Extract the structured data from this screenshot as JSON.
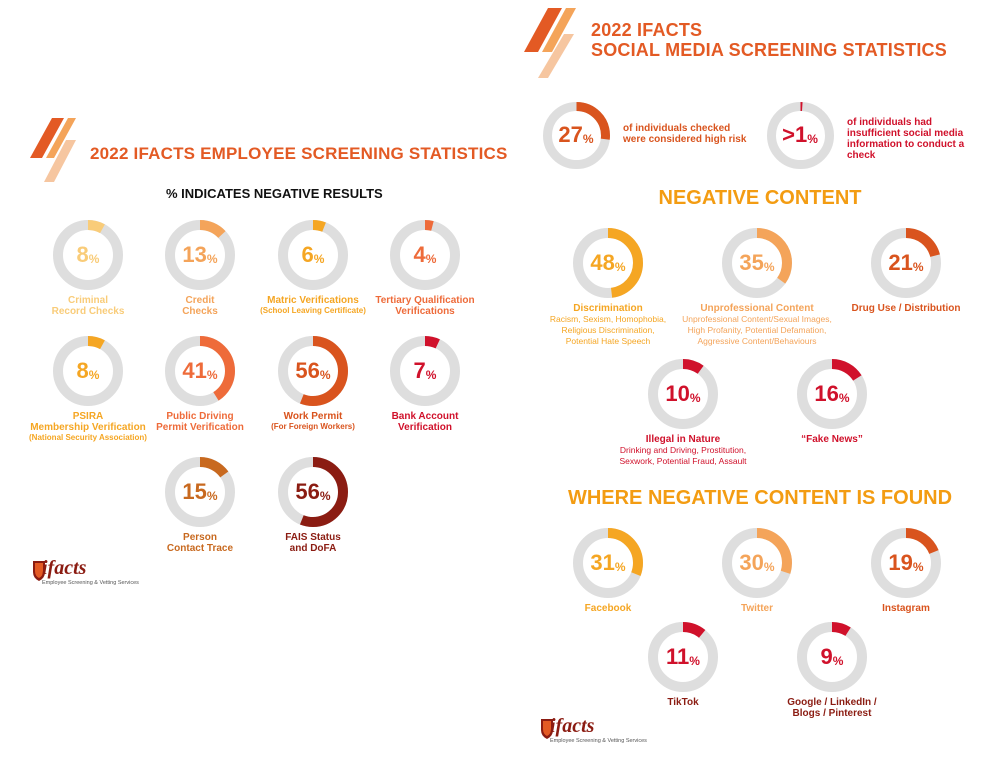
{
  "left": {
    "title": "2022 IFACTS EMPLOYEE SCREENING STATISTICS",
    "subtitle": "% INDICATES NEGATIVE RESULTS",
    "logo": {
      "text": "ifacts",
      "tagline": "Employee Screening & Vetting Services"
    }
  },
  "right": {
    "title_line1": "2022 IFACTS",
    "title_line2": "SOCIAL MEDIA SCREENING STATISTICS",
    "section_negative": "NEGATIVE CONTENT",
    "section_where": "WHERE NEGATIVE CONTENT IS FOUND",
    "logo": {
      "text": "ifacts",
      "tagline": "Employee Screening & Vetting Services"
    }
  },
  "colors": {
    "track": "#dedede",
    "pale": "#f9cc79",
    "light_orange": "#f4a45a",
    "amber": "#f5a623",
    "orange": "#ee6b3a",
    "dark_orange": "#d9541e",
    "brown": "#c8691f",
    "red": "#d0112b",
    "maroon": "#8b1c12",
    "heading": "#e35a24"
  },
  "chart_data": [
    {
      "type": "donut",
      "title": "2022 IFACTS EMPLOYEE SCREENING STATISTICS",
      "unit": "%",
      "items": [
        {
          "id": "e1",
          "value": 8,
          "display": "8",
          "label": "Criminal Record Checks",
          "label_lines": [
            "Criminal",
            "Record Checks"
          ],
          "sub": "",
          "color": "pale"
        },
        {
          "id": "e2",
          "value": 13,
          "display": "13",
          "label": "Credit Checks",
          "label_lines": [
            "Credit",
            "Checks"
          ],
          "sub": "",
          "color": "light_orange"
        },
        {
          "id": "e3",
          "value": 6,
          "display": "6",
          "label": "Matric Verifications",
          "label_lines": [
            "Matric Verifications"
          ],
          "sub": "(School Leaving Certificate)",
          "color": "amber"
        },
        {
          "id": "e4",
          "value": 4,
          "display": "4",
          "label": "Tertiary Qualification Verifications",
          "label_lines": [
            "Tertiary Qualification",
            "Verifications"
          ],
          "sub": "",
          "color": "orange"
        },
        {
          "id": "e5",
          "value": 8,
          "display": "8",
          "label": "PSIRA Membership Verification",
          "label_lines": [
            "PSIRA",
            "Membership Verification"
          ],
          "sub": "(National Security Association)",
          "color": "amber"
        },
        {
          "id": "e6",
          "value": 41,
          "display": "41",
          "label": "Public Driving Permit Verification",
          "label_lines": [
            "Public Driving",
            "Permit Verification"
          ],
          "sub": "",
          "color": "orange"
        },
        {
          "id": "e7",
          "value": 56,
          "display": "56",
          "label": "Work Permit",
          "label_lines": [
            "Work Permit"
          ],
          "sub": "(For Foreign Workers)",
          "color": "dark_orange"
        },
        {
          "id": "e8",
          "value": 7,
          "display": "7",
          "label": "Bank Account Verification",
          "label_lines": [
            "Bank Account",
            "Verification"
          ],
          "sub": "",
          "color": "red"
        },
        {
          "id": "e9",
          "value": 15,
          "display": "15",
          "label": "Person Contact Trace",
          "label_lines": [
            "Person",
            "Contact Trace"
          ],
          "sub": "",
          "color": "brown"
        },
        {
          "id": "e10",
          "value": 56,
          "display": "56",
          "label": "FAIS Status and DoFA",
          "label_lines": [
            "FAIS Status",
            "and DoFA"
          ],
          "sub": "",
          "color": "maroon"
        }
      ]
    },
    {
      "type": "donut",
      "title": "2022 IFACTS SOCIAL MEDIA SCREENING STATISTICS",
      "unit": "%",
      "items": [
        {
          "id": "s1",
          "value": 27,
          "display": "27",
          "text": "of individuals checked were considered high risk",
          "color": "dark_orange"
        },
        {
          "id": "s2",
          "value": 1,
          "display": ">1",
          "text": "of individuals had insufficient social media information to conduct a check",
          "color": "red"
        }
      ]
    },
    {
      "type": "donut",
      "title": "NEGATIVE CONTENT",
      "unit": "%",
      "items": [
        {
          "id": "n1",
          "value": 48,
          "display": "48",
          "label": "Discrimination",
          "desc": "Racism, Sexism, Homophobia, Religious Discrimination, Potential Hate Speech",
          "desc_lines": [
            "Racism, Sexism, Homophobia,",
            "Religious Discrimination,",
            "Potential Hate Speech"
          ],
          "color": "amber"
        },
        {
          "id": "n2",
          "value": 35,
          "display": "35",
          "label": "Unprofessional Content",
          "desc": "Unprofessional Content/Sexual Images, High Profanity, Potential Defamation, Aggressive Content/Behaviours",
          "desc_lines": [
            "Unprofessional Content/Sexual Images,",
            "High Profanity, Potential Defamation,",
            "Aggressive Content/Behaviours"
          ],
          "color": "light_orange"
        },
        {
          "id": "n3",
          "value": 21,
          "display": "21",
          "label": "Drug Use / Distribution",
          "desc": "",
          "desc_lines": [],
          "color": "dark_orange"
        },
        {
          "id": "n4",
          "value": 10,
          "display": "10",
          "label": "Illegal in Nature",
          "desc": "Drinking and Driving, Prostitution, Sexwork, Potential Fraud, Assault",
          "desc_lines": [
            "Drinking and Driving, Prostitution,",
            "Sexwork, Potential Fraud, Assault"
          ],
          "color": "red"
        },
        {
          "id": "n5",
          "value": 16,
          "display": "16",
          "label": "“Fake News”",
          "desc": "",
          "desc_lines": [],
          "color": "red"
        }
      ]
    },
    {
      "type": "donut",
      "title": "WHERE NEGATIVE CONTENT IS FOUND",
      "unit": "%",
      "items": [
        {
          "id": "w1",
          "value": 31,
          "display": "31",
          "label": "Facebook",
          "label_lines": [
            "Facebook"
          ],
          "color": "amber"
        },
        {
          "id": "w2",
          "value": 30,
          "display": "30",
          "label": "Twitter",
          "label_lines": [
            "Twitter"
          ],
          "color": "light_orange"
        },
        {
          "id": "w3",
          "value": 19,
          "display": "19",
          "label": "Instagram",
          "label_lines": [
            "Instagram"
          ],
          "color": "dark_orange"
        },
        {
          "id": "w4",
          "value": 11,
          "display": "11",
          "label": "TikTok",
          "label_lines": [
            "TikTok"
          ],
          "color": "red"
        },
        {
          "id": "w5",
          "value": 9,
          "display": "9",
          "label": "Google / LinkedIn / Blogs / Pinterest",
          "label_lines": [
            "Google / LinkedIn /",
            "Blogs / Pinterest"
          ],
          "color": "red"
        }
      ]
    }
  ]
}
